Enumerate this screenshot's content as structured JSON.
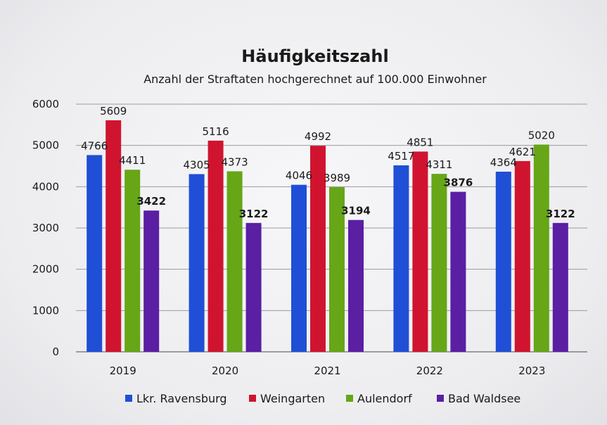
{
  "chart_data": {
    "type": "bar",
    "title": "Häufigkeitszahl",
    "subtitle": "Anzahl der Straftaten hochgerechnet auf 100.000 Einwohner",
    "categories": [
      "2019",
      "2020",
      "2021",
      "2022",
      "2023"
    ],
    "series": [
      {
        "name": "Lkr. Ravensburg",
        "color": "#1f4fd6",
        "bold_labels": false,
        "values": [
          4766,
          4305,
          4046,
          4517,
          4364
        ]
      },
      {
        "name": "Weingarten",
        "color": "#d0142f",
        "bold_labels": false,
        "values": [
          5609,
          5116,
          4992,
          4851,
          4621
        ]
      },
      {
        "name": "Aulendorf",
        "color": "#66a617",
        "bold_labels": false,
        "values": [
          4411,
          4373,
          3989,
          4311,
          5020
        ]
      },
      {
        "name": "Bad Waldsee",
        "color": "#5a1fa3",
        "bold_labels": true,
        "values": [
          3422,
          3122,
          3194,
          3876,
          3122
        ]
      }
    ],
    "yticks": [
      0,
      1000,
      2000,
      3000,
      4000,
      5000,
      6000
    ],
    "ylim": [
      0,
      6000
    ],
    "grid": true,
    "legend_position": "bottom"
  }
}
